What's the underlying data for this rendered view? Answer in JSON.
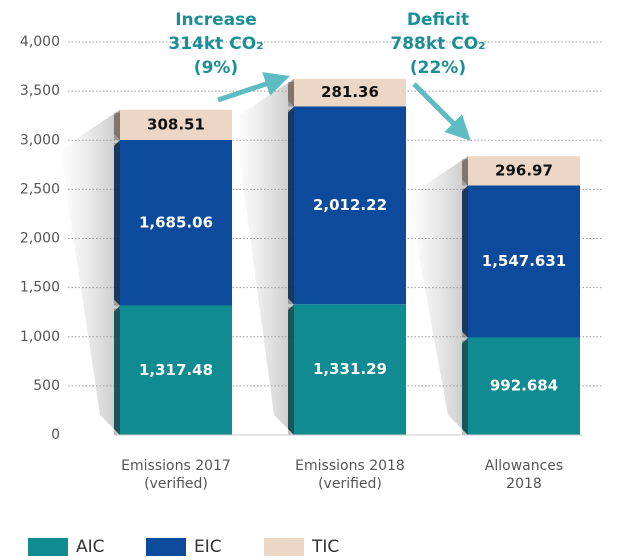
{
  "chart_data": {
    "type": "stacked_bar",
    "categories": [
      [
        "Emissions 2017",
        "(verified)"
      ],
      [
        "Emissions 2018",
        "(verified)"
      ],
      [
        "Allowances",
        "2018"
      ]
    ],
    "series": [
      {
        "name": "AIC",
        "color": "#0f8b91",
        "values": [
          1317.48,
          1331.29,
          992.684
        ],
        "value_labels": [
          "1,317.48",
          "1,331.29",
          "992.684"
        ]
      },
      {
        "name": "EIC",
        "color": "#0c4a9b",
        "values": [
          1685.06,
          2012.22,
          1547.631
        ],
        "value_labels": [
          "1,685.06",
          "2,012.22",
          "1,547.631"
        ]
      },
      {
        "name": "TIC",
        "color": "#ecd6c6",
        "values": [
          308.51,
          281.36,
          296.97
        ]
      }
    ],
    "ylim": [
      0,
      4000
    ],
    "yticks": [
      0,
      500,
      {
        "value": 1000,
        "label": "1,000"
      },
      {
        "value": 1500,
        "label": "1,500"
      },
      {
        "value": 2000,
        "label": "2,000"
      },
      {
        "value": 2500,
        "label": "2,500"
      },
      {
        "value": 3000,
        "label": "3,000"
      },
      {
        "value": 3500,
        "label": "3,500"
      },
      {
        "value": 4000,
        "label": "4,000"
      }
    ],
    "grid": true,
    "annotations": [
      {
        "lines": [
          "Increase",
          "314kt CO₂",
          "(9%)"
        ]
      },
      {
        "lines": [
          "Deficit",
          "788kt CO₂",
          "(22%)"
        ]
      }
    ]
  }
}
